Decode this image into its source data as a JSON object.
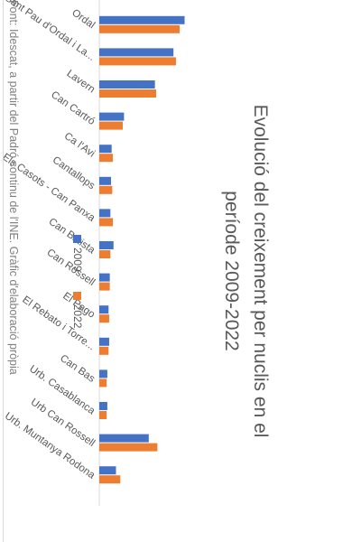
{
  "chart_data": {
    "type": "bar",
    "orientation": "horizontal",
    "title_lines": [
      "Evolució del creixement per nuclis en el",
      "període 2009-2022"
    ],
    "categories": [
      "Ordal",
      "Sant Pau d'Ordal i La...",
      "Lavern",
      "Can Cartró",
      "Ca l'Avi",
      "Cantallops",
      "Els Casots - Can Panxa",
      "Can Batista",
      "Can Rossell",
      "El Pago",
      "El Rebato i Torre...",
      "Can Bas",
      "Urb. Casablanca",
      "Urb Can Rossell",
      "Urb. Muntanya Rodona"
    ],
    "series": [
      {
        "name": "2009",
        "color": "#4472C4",
        "values": [
          690,
          600,
          450,
          200,
          100,
          95,
          90,
          115,
          85,
          75,
          80,
          65,
          65,
          400,
          135
        ]
      },
      {
        "name": "2022",
        "color": "#ED7D31",
        "values": [
          650,
          620,
          460,
          190,
          110,
          105,
          110,
          90,
          85,
          80,
          75,
          60,
          60,
          470,
          170
        ]
      }
    ],
    "xlim": [
      0,
      800
    ],
    "ticks": [
      "0",
      "100",
      "200",
      "300",
      "400",
      "500",
      "600",
      "700",
      "800"
    ],
    "grid": false,
    "legend_position": "bottom"
  },
  "source_note": "Font: Idescat, a partir del Padró continu de l'INE. Gràfic d'elaboració pròpia"
}
